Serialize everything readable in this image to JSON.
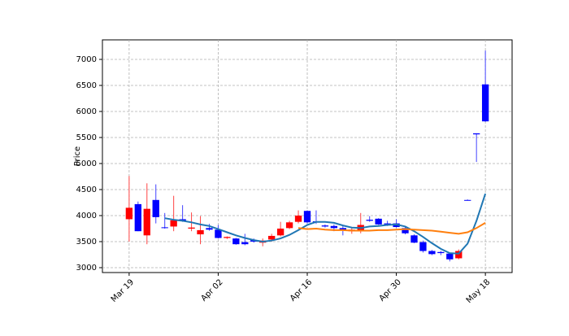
{
  "chart_data": {
    "type": "candlestick",
    "ylabel": "Price",
    "categories": [
      "Mar 19",
      null,
      null,
      null,
      null,
      null,
      null,
      null,
      null,
      null,
      "Apr 02",
      null,
      null,
      null,
      null,
      null,
      null,
      null,
      null,
      null,
      "Apr 16",
      null,
      null,
      null,
      null,
      null,
      null,
      null,
      null,
      null,
      "Apr 30",
      null,
      null,
      null,
      null,
      null,
      null,
      null,
      null,
      null,
      "May 18"
    ],
    "open": [
      4150,
      3700,
      4130,
      3970,
      3760,
      3910,
      3900,
      3770,
      3720,
      3730,
      3570,
      3590,
      3450,
      3450,
      3500,
      3520,
      3610,
      3750,
      3870,
      4000,
      3870,
      3870,
      3790,
      3760,
      3730,
      3730,
      3820,
      3900,
      3830,
      3830,
      3780,
      3660,
      3480,
      3320,
      3260,
      3280,
      3160,
      3320,
      4300,
      5560,
      5810
    ],
    "high": [
      4760,
      4270,
      4620,
      4600,
      4050,
      4380,
      4200,
      4060,
      3990,
      3840,
      3820,
      3600,
      3570,
      3650,
      3560,
      3560,
      3650,
      3880,
      3900,
      4100,
      4100,
      4100,
      3830,
      3830,
      3800,
      3780,
      4050,
      3990,
      3950,
      3900,
      3930,
      3780,
      3640,
      3520,
      3340,
      3320,
      3290,
      3350,
      4310,
      5580,
      7170
    ],
    "low": [
      3500,
      3700,
      3450,
      3850,
      3750,
      3700,
      3880,
      3700,
      3450,
      3710,
      3560,
      3550,
      3440,
      3430,
      3480,
      3410,
      3500,
      3600,
      3740,
      3850,
      3850,
      3840,
      3770,
      3700,
      3620,
      3650,
      3660,
      3880,
      3820,
      3800,
      3770,
      3640,
      3470,
      3290,
      3240,
      3240,
      3120,
      3160,
      4290,
      5030,
      5800
    ],
    "close": [
      3930,
      4220,
      3620,
      4300,
      3775,
      3790,
      3930,
      3750,
      3640,
      3760,
      3730,
      3570,
      3560,
      3490,
      3530,
      3480,
      3540,
      3620,
      3760,
      3880,
      4090,
      3890,
      3810,
      3800,
      3760,
      3700,
      3720,
      3920,
      3940,
      3850,
      3850,
      3760,
      3620,
      3490,
      3320,
      3300,
      3270,
      3180,
      4300,
      5580,
      6520
    ],
    "up_color": "#0000ff",
    "down_color": "#ff0000",
    "wick_up_color": "#4444ff",
    "wick_down_color": "#ff4444",
    "series": [
      {
        "type": "line",
        "color": "#1f77b4",
        "values": [
          null,
          null,
          null,
          null,
          3950,
          3920,
          3900,
          3870,
          3830,
          3800,
          3740,
          3680,
          3620,
          3570,
          3530,
          3500,
          3520,
          3560,
          3630,
          3720,
          3820,
          3880,
          3880,
          3860,
          3810,
          3770,
          3760,
          3790,
          3800,
          3820,
          3830,
          3790,
          3700,
          3590,
          3470,
          3360,
          3280,
          3270,
          3460,
          3900,
          4420
        ]
      },
      {
        "type": "line",
        "color": "#ff7f0e",
        "values": [
          null,
          null,
          null,
          null,
          null,
          null,
          null,
          null,
          null,
          null,
          null,
          null,
          null,
          null,
          null,
          null,
          null,
          null,
          null,
          3760,
          3740,
          3750,
          3730,
          3720,
          3720,
          3710,
          3710,
          3710,
          3720,
          3720,
          3730,
          3740,
          3730,
          3720,
          3710,
          3690,
          3670,
          3650,
          3680,
          3760,
          3860
        ]
      }
    ],
    "ylim": [
      2906,
      7375
    ],
    "yticks": [
      3000,
      3500,
      4000,
      4500,
      5000,
      5500,
      6000,
      6500,
      7000
    ],
    "grid": true
  }
}
